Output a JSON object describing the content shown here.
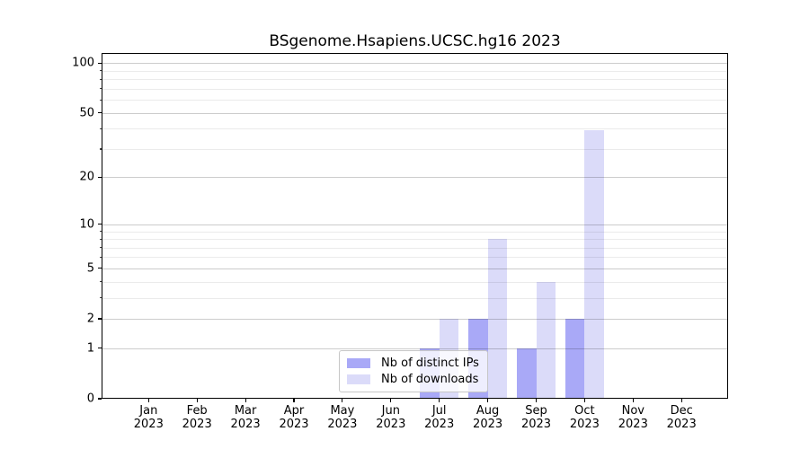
{
  "title": "BSgenome.Hsapiens.UCSC.hg16 2023",
  "chart_data": {
    "type": "bar",
    "title": "BSgenome.Hsapiens.UCSC.hg16 2023",
    "x_months": [
      "Jan",
      "Feb",
      "Mar",
      "Apr",
      "May",
      "Jun",
      "Jul",
      "Aug",
      "Sep",
      "Oct",
      "Nov",
      "Dec"
    ],
    "x_year": "2023",
    "series": [
      {
        "name": "Nb of distinct IPs",
        "color": "#a9a9f7",
        "values": [
          0,
          0,
          0,
          0,
          0,
          0,
          1,
          2,
          1,
          2,
          0,
          0
        ]
      },
      {
        "name": "Nb of downloads",
        "color": "#dbdbf9",
        "values": [
          0,
          0,
          0,
          0,
          0,
          0,
          2,
          8,
          4,
          39,
          0,
          0
        ]
      }
    ],
    "yscale": "log1p",
    "ylim": [
      0,
      115
    ],
    "yticks_major": [
      0,
      1,
      2,
      5,
      10,
      20,
      50,
      100
    ],
    "yticks_minor": [
      3,
      4,
      6,
      7,
      8,
      9,
      30,
      40,
      60,
      70,
      80,
      90
    ],
    "grid": "horizontal-on-top-of-bars",
    "legend_position": "lower center"
  },
  "colors": {
    "background": "#ffffff",
    "axis": "#000000",
    "grid_major": "rgba(0,0,0,0.20)",
    "grid_minor": "rgba(0,0,0,0.08)",
    "series_ips": "#a9a9f7",
    "series_downloads": "#dbdbf9"
  }
}
